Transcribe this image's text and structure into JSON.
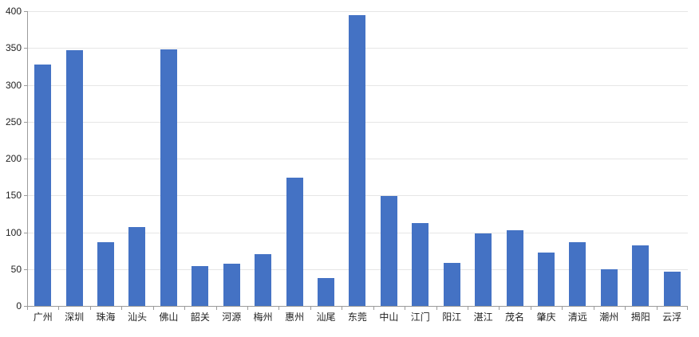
{
  "chart_data": {
    "type": "bar",
    "title": "",
    "xlabel": "",
    "ylabel": "",
    "categories": [
      "广州",
      "深圳",
      "珠海",
      "汕头",
      "佛山",
      "韶关",
      "河源",
      "梅州",
      "惠州",
      "汕尾",
      "东莞",
      "中山",
      "江门",
      "阳江",
      "湛江",
      "茂名",
      "肇庆",
      "清远",
      "潮州",
      "揭阳",
      "云浮"
    ],
    "values": [
      328,
      347,
      87,
      107,
      348,
      54,
      57,
      70,
      174,
      38,
      395,
      149,
      112,
      58,
      98,
      103,
      72,
      86,
      50,
      82,
      46
    ],
    "ylim": [
      0,
      400
    ],
    "ytick_step": 50,
    "ytick_labels": [
      "0",
      "50",
      "100",
      "150",
      "200",
      "250",
      "300",
      "350",
      "400"
    ],
    "grid": true,
    "legend": false,
    "colors": {
      "bar": "#4472C4",
      "gridline": "#E6E6E6",
      "axis": "#9B9B9B",
      "text": "#1F1F1F",
      "background": "#FFFFFF"
    }
  }
}
